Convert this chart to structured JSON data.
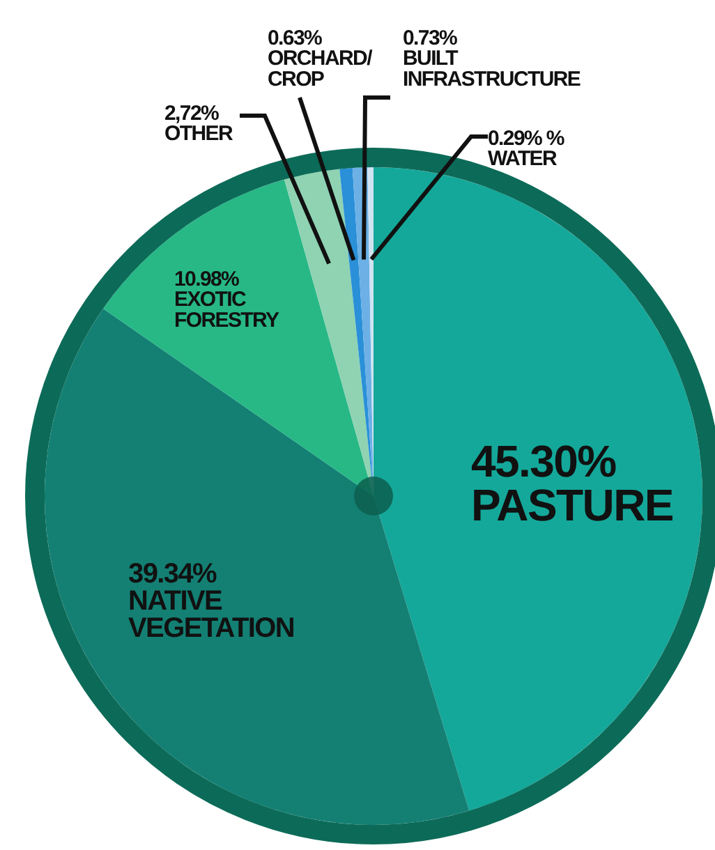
{
  "chart_data": {
    "type": "pie",
    "categories": [
      "PASTURE",
      "NATIVE VEGETATION",
      "EXOTIC FORESTRY",
      "OTHER",
      "ORCHARD/ CROP",
      "BUILT INFRASTRUCTURE",
      "WATER"
    ],
    "values": [
      45.3,
      39.34,
      10.98,
      2.72,
      0.63,
      0.73,
      0.29
    ],
    "value_labels": [
      "45.30%",
      "39.34%",
      "10.98%",
      "2,72%",
      "0.63%",
      "0.73%",
      "0.29% %"
    ],
    "colors": [
      "#14a89a",
      "#148074",
      "#27b886",
      "#8fd3b3",
      "#2a90d8",
      "#6cb0e6",
      "#cfe3f2"
    ]
  }
}
